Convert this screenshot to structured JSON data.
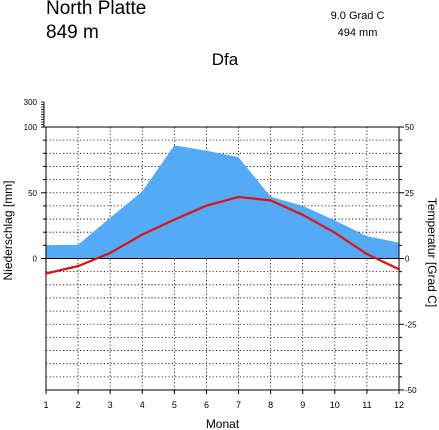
{
  "header": {
    "station": "North Platte",
    "elevation": "849  m",
    "annual_temp": "9.0 Grad C",
    "annual_precip": "494 mm",
    "climate_class": "Dfa"
  },
  "chart_data": {
    "type": "line",
    "title": "North Platte",
    "xlabel": "Monat",
    "ylabel_left": "Niederschlag [mm]",
    "ylabel_right": "Temperatur [Grad C]",
    "x": [
      1,
      2,
      3,
      4,
      5,
      6,
      7,
      8,
      9,
      10,
      11,
      12
    ],
    "x_ticks": [
      "1",
      "2",
      "3",
      "4",
      "5",
      "6",
      "7",
      "8",
      "9",
      "10",
      "11",
      "12"
    ],
    "left_ticks": [
      "0",
      "50",
      "100",
      "300"
    ],
    "right_ticks": [
      "50",
      "25",
      "0",
      "-25",
      "-50"
    ],
    "temp_ylim": [
      -50,
      50
    ],
    "precip_ylim": [
      0,
      100
    ],
    "grid": true,
    "series": [
      {
        "name": "Niederschlag",
        "type": "area",
        "color": "#55aaf5",
        "values": [
          10,
          10.5,
          31,
          51,
          86,
          82,
          77,
          47,
          40,
          29,
          17,
          12
        ]
      },
      {
        "name": "Temperatur",
        "type": "line",
        "color": "#dd1111",
        "values": [
          -5.7,
          -2.9,
          2.1,
          9.1,
          14.8,
          20.1,
          23.4,
          22.1,
          16.6,
          9.8,
          1.7,
          -4.1
        ]
      }
    ]
  }
}
